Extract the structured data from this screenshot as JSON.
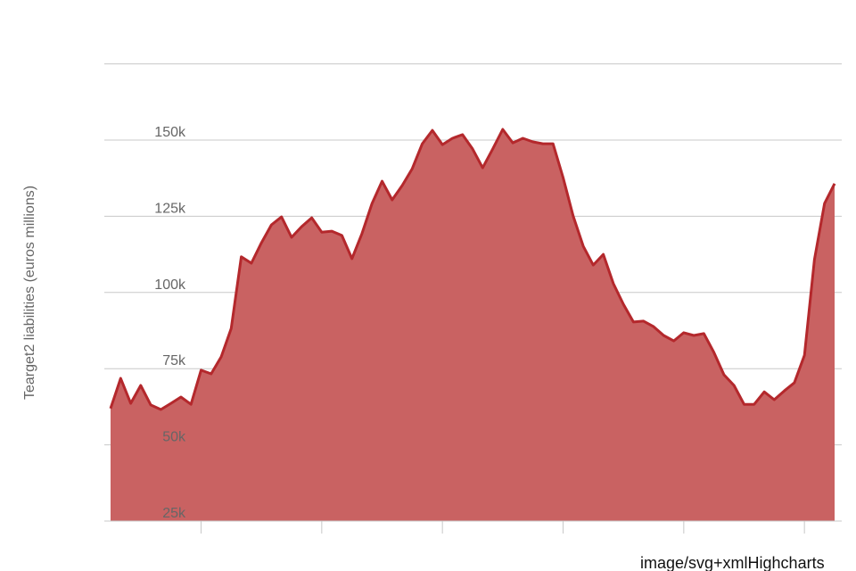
{
  "chart_data": {
    "type": "area",
    "y_axis_label": "Tearget2 liabilities (euros millions)",
    "credit": "image/svg+xmlHighcharts",
    "color": "#c96262",
    "line_color": "#b4282c",
    "values": [
      61900,
      71800,
      63600,
      69500,
      63100,
      61600,
      63600,
      65700,
      63300,
      74500,
      73300,
      78900,
      88200,
      111700,
      109600,
      116300,
      122200,
      124800,
      118100,
      121600,
      124500,
      119800,
      120100,
      118700,
      111100,
      119300,
      129200,
      136500,
      130400,
      135100,
      140600,
      148800,
      153200,
      148500,
      150600,
      151800,
      147100,
      140900,
      147100,
      153500,
      149100,
      150600,
      149400,
      148800,
      148800,
      137700,
      125100,
      115200,
      109000,
      112500,
      102900,
      96100,
      90300,
      90600,
      88800,
      85900,
      84100,
      86800,
      85900,
      86500,
      80300,
      73000,
      69500,
      63300,
      63300,
      67400,
      64800,
      67700,
      70400,
      79400,
      110800,
      129200,
      135700
    ],
    "ylim": [
      25000,
      175000
    ],
    "yticks": [
      {
        "value": 25000,
        "label": "25k"
      },
      {
        "value": 50000,
        "label": "50k"
      },
      {
        "value": 75000,
        "label": "75k"
      },
      {
        "value": 100000,
        "label": "100k"
      },
      {
        "value": 125000,
        "label": "125k"
      },
      {
        "value": 150000,
        "label": "150k"
      }
    ],
    "grid": true
  }
}
